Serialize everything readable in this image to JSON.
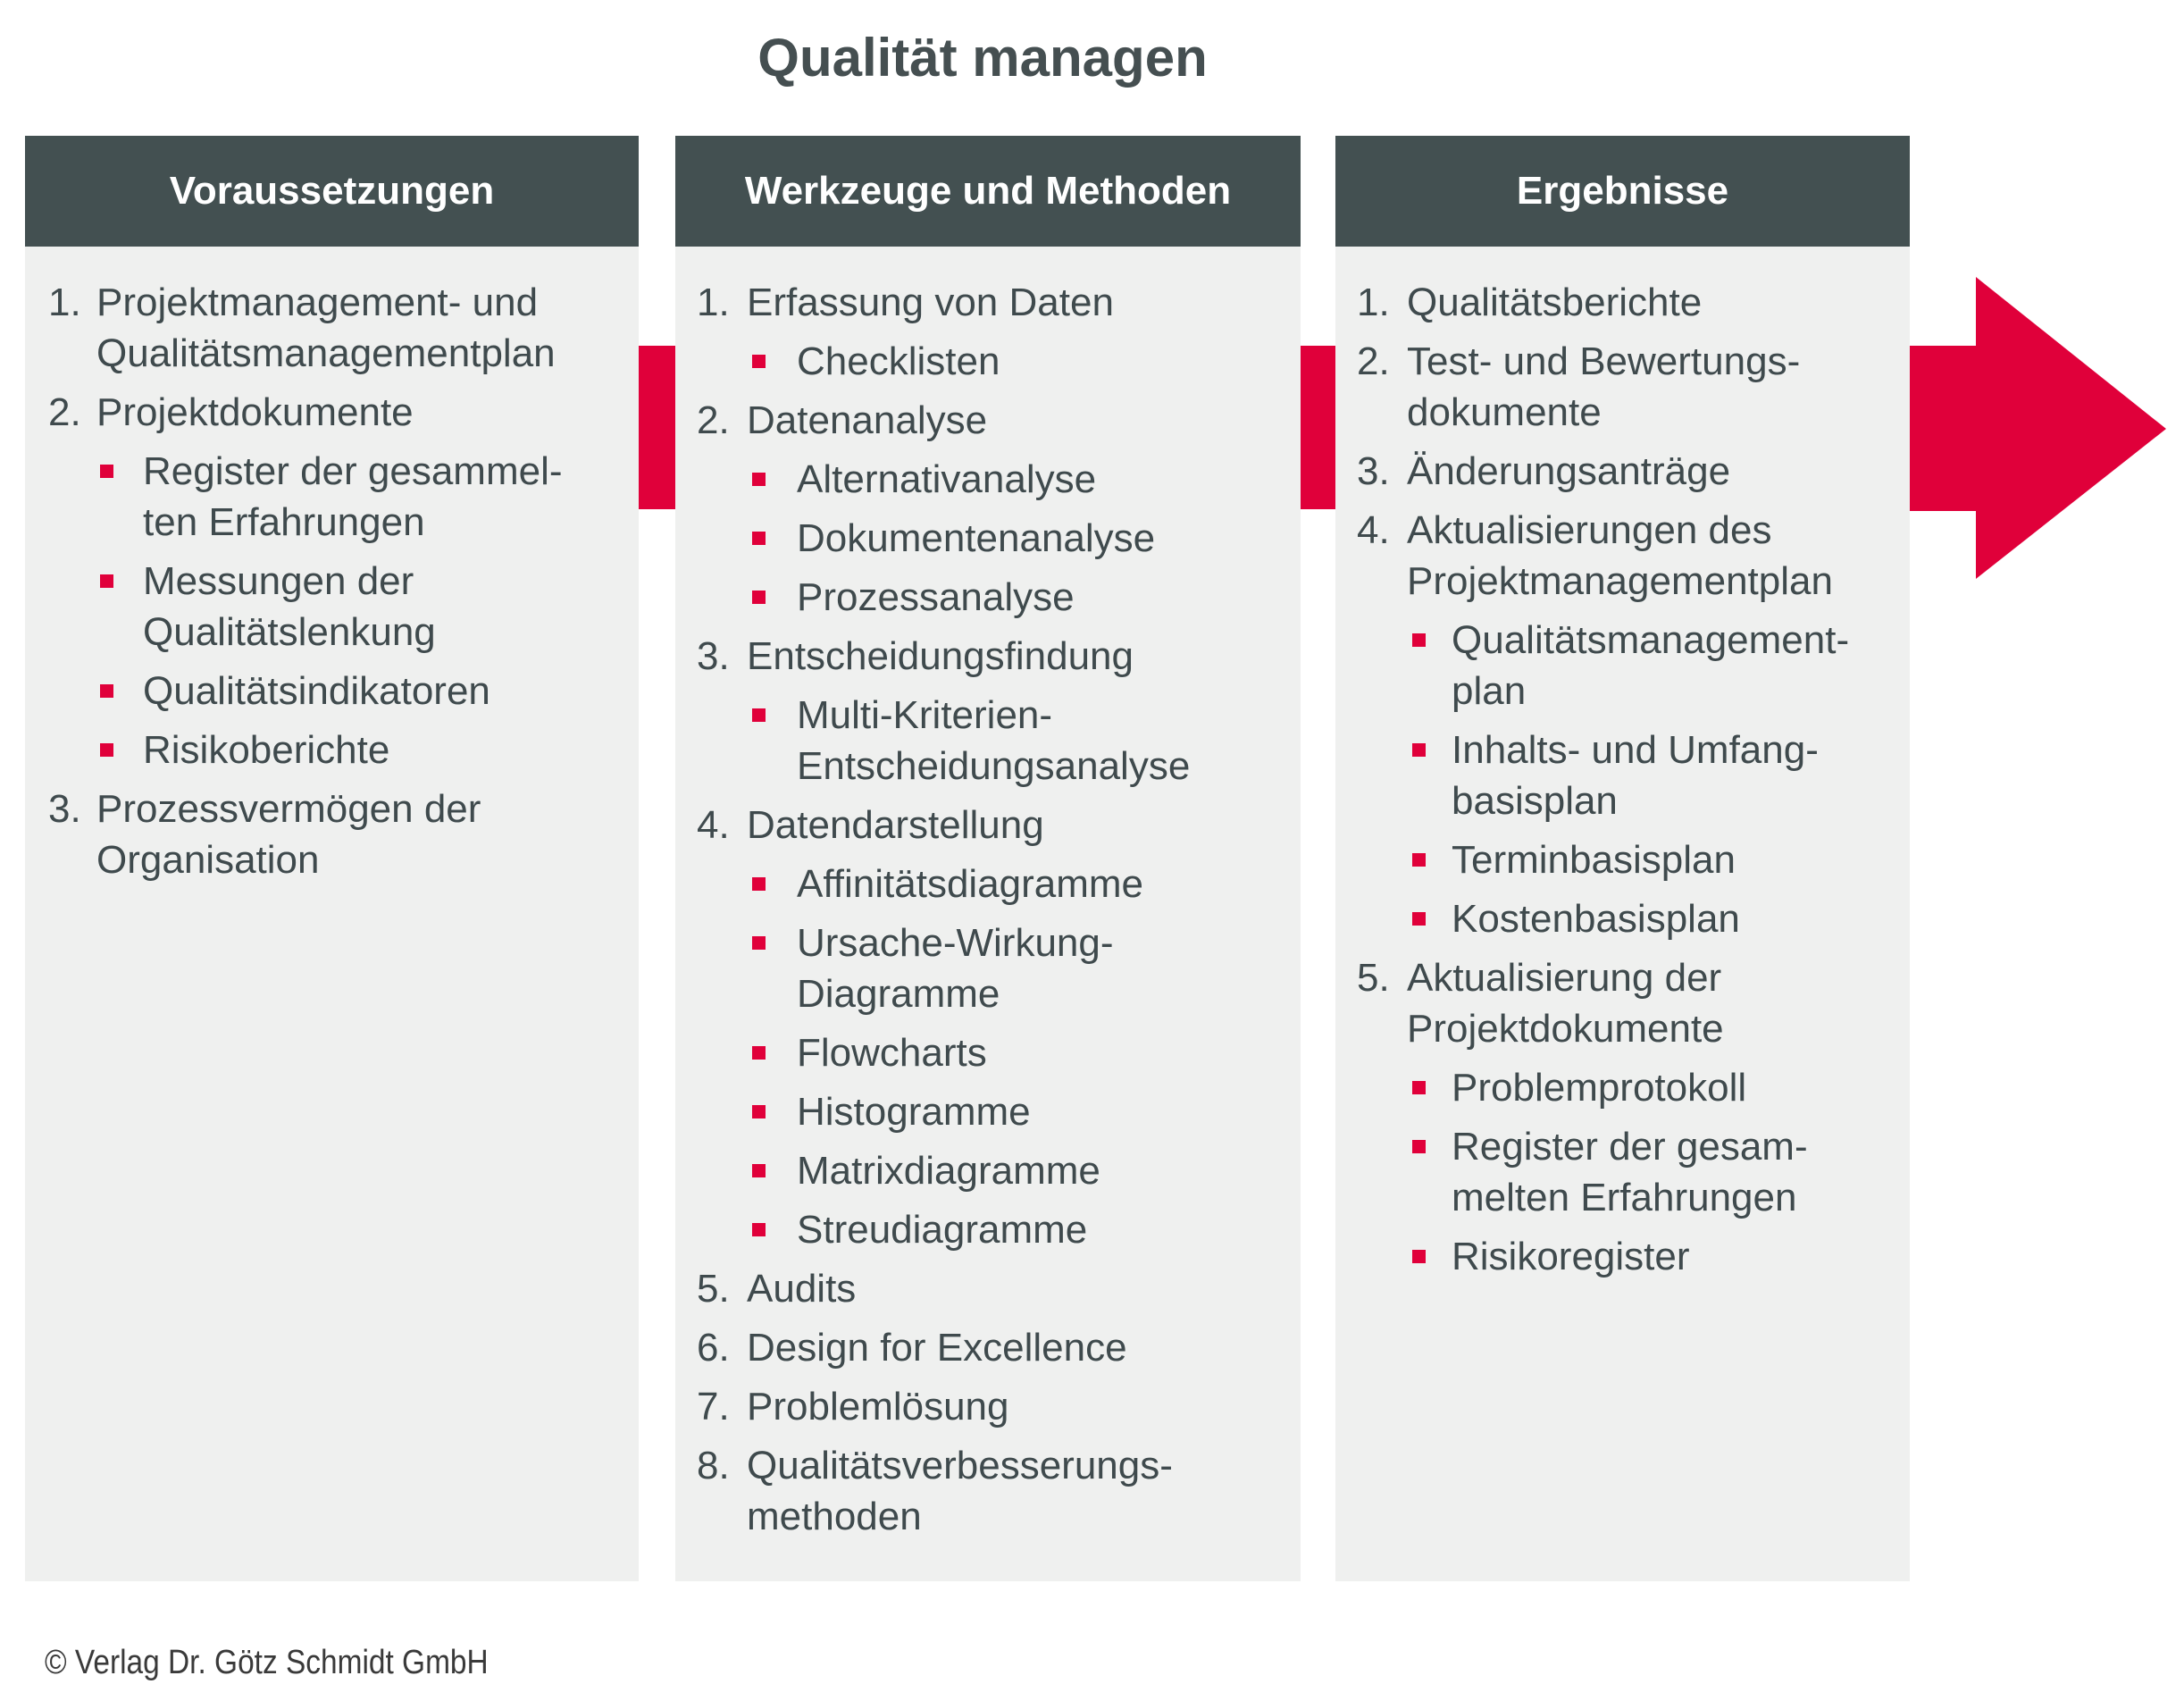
{
  "title": "Qualität managen",
  "accent_color": "#e0003a",
  "header_color": "#435051",
  "columns": [
    {
      "header": "Voraussetzungen",
      "items": [
        {
          "num": "1.",
          "lines": [
            "Projektmanagement- und",
            "Qualitätsmanagementplan"
          ],
          "subs": []
        },
        {
          "num": "2.",
          "lines": [
            "Projektdokumente"
          ],
          "subs": [
            {
              "lines": [
                "Register der gesammel-",
                "ten Erfahrungen"
              ]
            },
            {
              "lines": [
                "Messungen der",
                "Qualitätslenkung"
              ]
            },
            {
              "lines": [
                "Qualitätsindikatoren"
              ]
            },
            {
              "lines": [
                "Risikoberichte"
              ]
            }
          ]
        },
        {
          "num": "3.",
          "lines": [
            "Prozessvermögen der",
            "Organisation"
          ],
          "subs": []
        }
      ]
    },
    {
      "header": "Werkzeuge und Methoden",
      "items": [
        {
          "num": "1.",
          "lines": [
            "Erfassung von Daten"
          ],
          "subs": [
            {
              "lines": [
                "Checklisten"
              ]
            }
          ]
        },
        {
          "num": "2.",
          "lines": [
            "Datenanalyse"
          ],
          "subs": [
            {
              "lines": [
                "Alternativanalyse"
              ]
            },
            {
              "lines": [
                "Dokumentenanalyse"
              ]
            },
            {
              "lines": [
                "Prozessanalyse"
              ]
            }
          ]
        },
        {
          "num": "3.",
          "lines": [
            "Entscheidungsfindung"
          ],
          "subs": [
            {
              "lines": [
                "Multi-Kriterien-",
                "Entscheidungsanalyse"
              ]
            }
          ]
        },
        {
          "num": "4.",
          "lines": [
            "Datendarstellung"
          ],
          "subs": [
            {
              "lines": [
                "Affinitätsdiagramme"
              ]
            },
            {
              "lines": [
                "Ursache-Wirkung-",
                "Diagramme"
              ]
            },
            {
              "lines": [
                "Flowcharts"
              ]
            },
            {
              "lines": [
                "Histogramme"
              ]
            },
            {
              "lines": [
                "Matrixdiagramme"
              ]
            },
            {
              "lines": [
                "Streudiagramme"
              ]
            }
          ]
        },
        {
          "num": "5.",
          "lines": [
            "Audits"
          ],
          "subs": []
        },
        {
          "num": "6.",
          "lines": [
            "Design for Excellence"
          ],
          "subs": []
        },
        {
          "num": "7.",
          "lines": [
            "Problemlösung"
          ],
          "subs": []
        },
        {
          "num": "8.",
          "lines": [
            "Qualitätsverbesserungs-",
            "methoden"
          ],
          "subs": []
        }
      ]
    },
    {
      "header": "Ergebnisse",
      "items": [
        {
          "num": "1.",
          "lines": [
            "Qualitätsberichte"
          ],
          "subs": []
        },
        {
          "num": "2.",
          "lines": [
            "Test- und Bewertungs-",
            "dokumente"
          ],
          "subs": []
        },
        {
          "num": "3.",
          "lines": [
            "Änderungsanträge"
          ],
          "subs": []
        },
        {
          "num": "4.",
          "lines": [
            "Aktualisierungen des",
            "Projektmanagementplan"
          ],
          "subs": [
            {
              "lines": [
                "Qualitätsmanagement-",
                "plan"
              ]
            },
            {
              "lines": [
                "Inhalts- und Umfang-",
                "basisplan"
              ]
            },
            {
              "lines": [
                "Terminbasisplan"
              ]
            },
            {
              "lines": [
                "Kostenbasisplan"
              ]
            }
          ]
        },
        {
          "num": "5.",
          "lines": [
            "Aktualisierung der",
            "Projektdokumente"
          ],
          "subs": [
            {
              "lines": [
                "Problemprotokoll"
              ]
            },
            {
              "lines": [
                "Register der gesam-",
                "melten Erfahrungen"
              ]
            },
            {
              "lines": [
                "Risikoregister"
              ]
            }
          ]
        }
      ]
    }
  ],
  "footer": "© Verlag Dr. Götz Schmidt GmbH"
}
